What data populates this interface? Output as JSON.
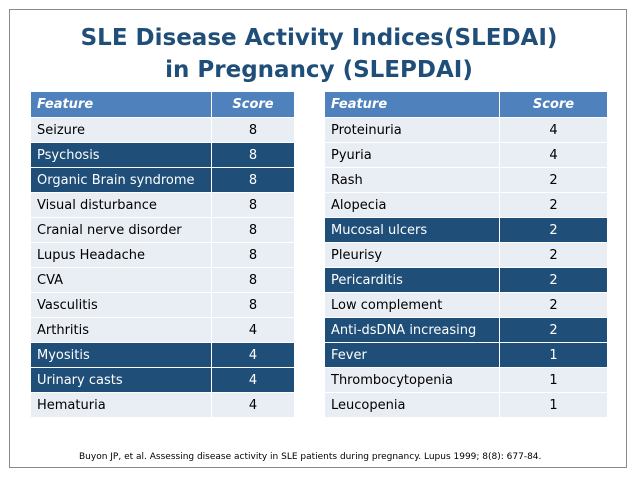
{
  "title": {
    "line1": "SLE Disease Activity Indices(SLEDAI)",
    "line2": "in Pregnancy (SLEPDAI)"
  },
  "colors": {
    "title": "#1f4e79",
    "header": "#4f81bd",
    "highlight_row": "#1f4e79",
    "normal_row": "#e9edf4"
  },
  "tables": [
    {
      "headers": [
        "Feature",
        "Score"
      ],
      "rows": [
        {
          "feature": "Seizure",
          "score": "8",
          "highlight": false
        },
        {
          "feature": "Psychosis",
          "score": "8",
          "highlight": true
        },
        {
          "feature": "Organic Brain syndrome",
          "score": "8",
          "highlight": true
        },
        {
          "feature": "Visual disturbance",
          "score": "8",
          "highlight": false
        },
        {
          "feature": "Cranial nerve disorder",
          "score": "8",
          "highlight": false
        },
        {
          "feature": "Lupus Headache",
          "score": "8",
          "highlight": false
        },
        {
          "feature": "CVA",
          "score": "8",
          "highlight": false
        },
        {
          "feature": "Vasculitis",
          "score": "8",
          "highlight": false
        },
        {
          "feature": "Arthritis",
          "score": "4",
          "highlight": false
        },
        {
          "feature": "Myositis",
          "score": "4",
          "highlight": true
        },
        {
          "feature": "Urinary casts",
          "score": "4",
          "highlight": true
        },
        {
          "feature": "Hematuria",
          "score": "4",
          "highlight": false
        }
      ]
    },
    {
      "headers": [
        "Feature",
        "Score"
      ],
      "rows": [
        {
          "feature": "Proteinuria",
          "score": "4",
          "highlight": false
        },
        {
          "feature": "Pyuria",
          "score": "4",
          "highlight": false
        },
        {
          "feature": "Rash",
          "score": "2",
          "highlight": false
        },
        {
          "feature": "Alopecia",
          "score": "2",
          "highlight": false
        },
        {
          "feature": "Mucosal ulcers",
          "score": "2",
          "highlight": true
        },
        {
          "feature": "Pleurisy",
          "score": "2",
          "highlight": false
        },
        {
          "feature": "Pericarditis",
          "score": "2",
          "highlight": true
        },
        {
          "feature": "Low complement",
          "score": "2",
          "highlight": false
        },
        {
          "feature": "Anti-dsDNA increasing",
          "score": "2",
          "highlight": true
        },
        {
          "feature": "Fever",
          "score": "1",
          "highlight": true
        },
        {
          "feature": "Thrombocytopenia",
          "score": "1",
          "highlight": false
        },
        {
          "feature": "Leucopenia",
          "score": "1",
          "highlight": false
        }
      ]
    }
  ],
  "citation": "Buyon JP, et al. Assessing disease activity in SLE patients during pregnancy. Lupus 1999; 8(8): 677-84."
}
